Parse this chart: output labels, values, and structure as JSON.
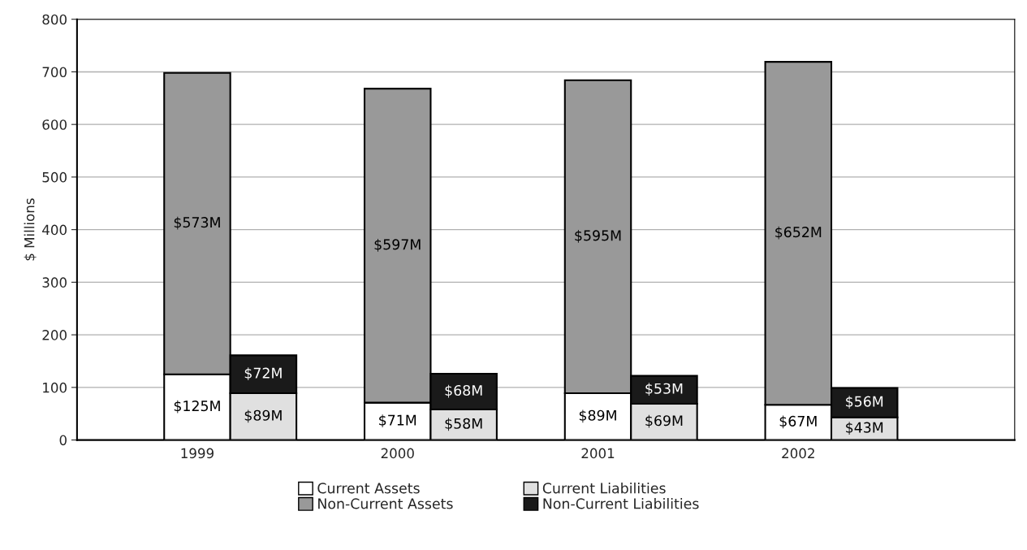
{
  "chart_data": {
    "type": "bar",
    "stacked": true,
    "categories": [
      "1999",
      null,
      "2000",
      null,
      "2001",
      null,
      "2002",
      null
    ],
    "series": [
      {
        "name": "Current Assets",
        "color": "#ffffff",
        "values": [
          125,
          null,
          71,
          null,
          89,
          null,
          67,
          null
        ],
        "value_labels": [
          "$125M",
          null,
          "$71M",
          null,
          "$89M",
          null,
          "$67M",
          null
        ]
      },
      {
        "name": "Non-Current Assets",
        "color": "#999999",
        "values": [
          573,
          null,
          597,
          null,
          595,
          null,
          652,
          null
        ],
        "value_labels": [
          "$573M",
          null,
          "$597M",
          null,
          "$595M",
          null,
          "$652M",
          null
        ]
      },
      {
        "name": "Current Liabilities",
        "color": "#e0e0e0",
        "values": [
          null,
          89,
          null,
          58,
          null,
          69,
          null,
          43
        ],
        "value_labels": [
          null,
          "$89M",
          null,
          "$58M",
          null,
          "$69M",
          null,
          "$43M"
        ]
      },
      {
        "name": "Non-Current Liabilities",
        "color": "#1a1a1a",
        "values": [
          null,
          72,
          null,
          68,
          null,
          53,
          null,
          56
        ],
        "value_labels": [
          null,
          "$72M",
          null,
          "$68M",
          null,
          "$53M",
          null,
          "$56M"
        ]
      }
    ],
    "ylabel": "$ Millions",
    "ylim": [
      0,
      800
    ],
    "yticks": [
      0,
      100,
      200,
      300,
      400,
      500,
      600,
      700,
      800
    ],
    "grid": "y",
    "legend": "bottom"
  }
}
